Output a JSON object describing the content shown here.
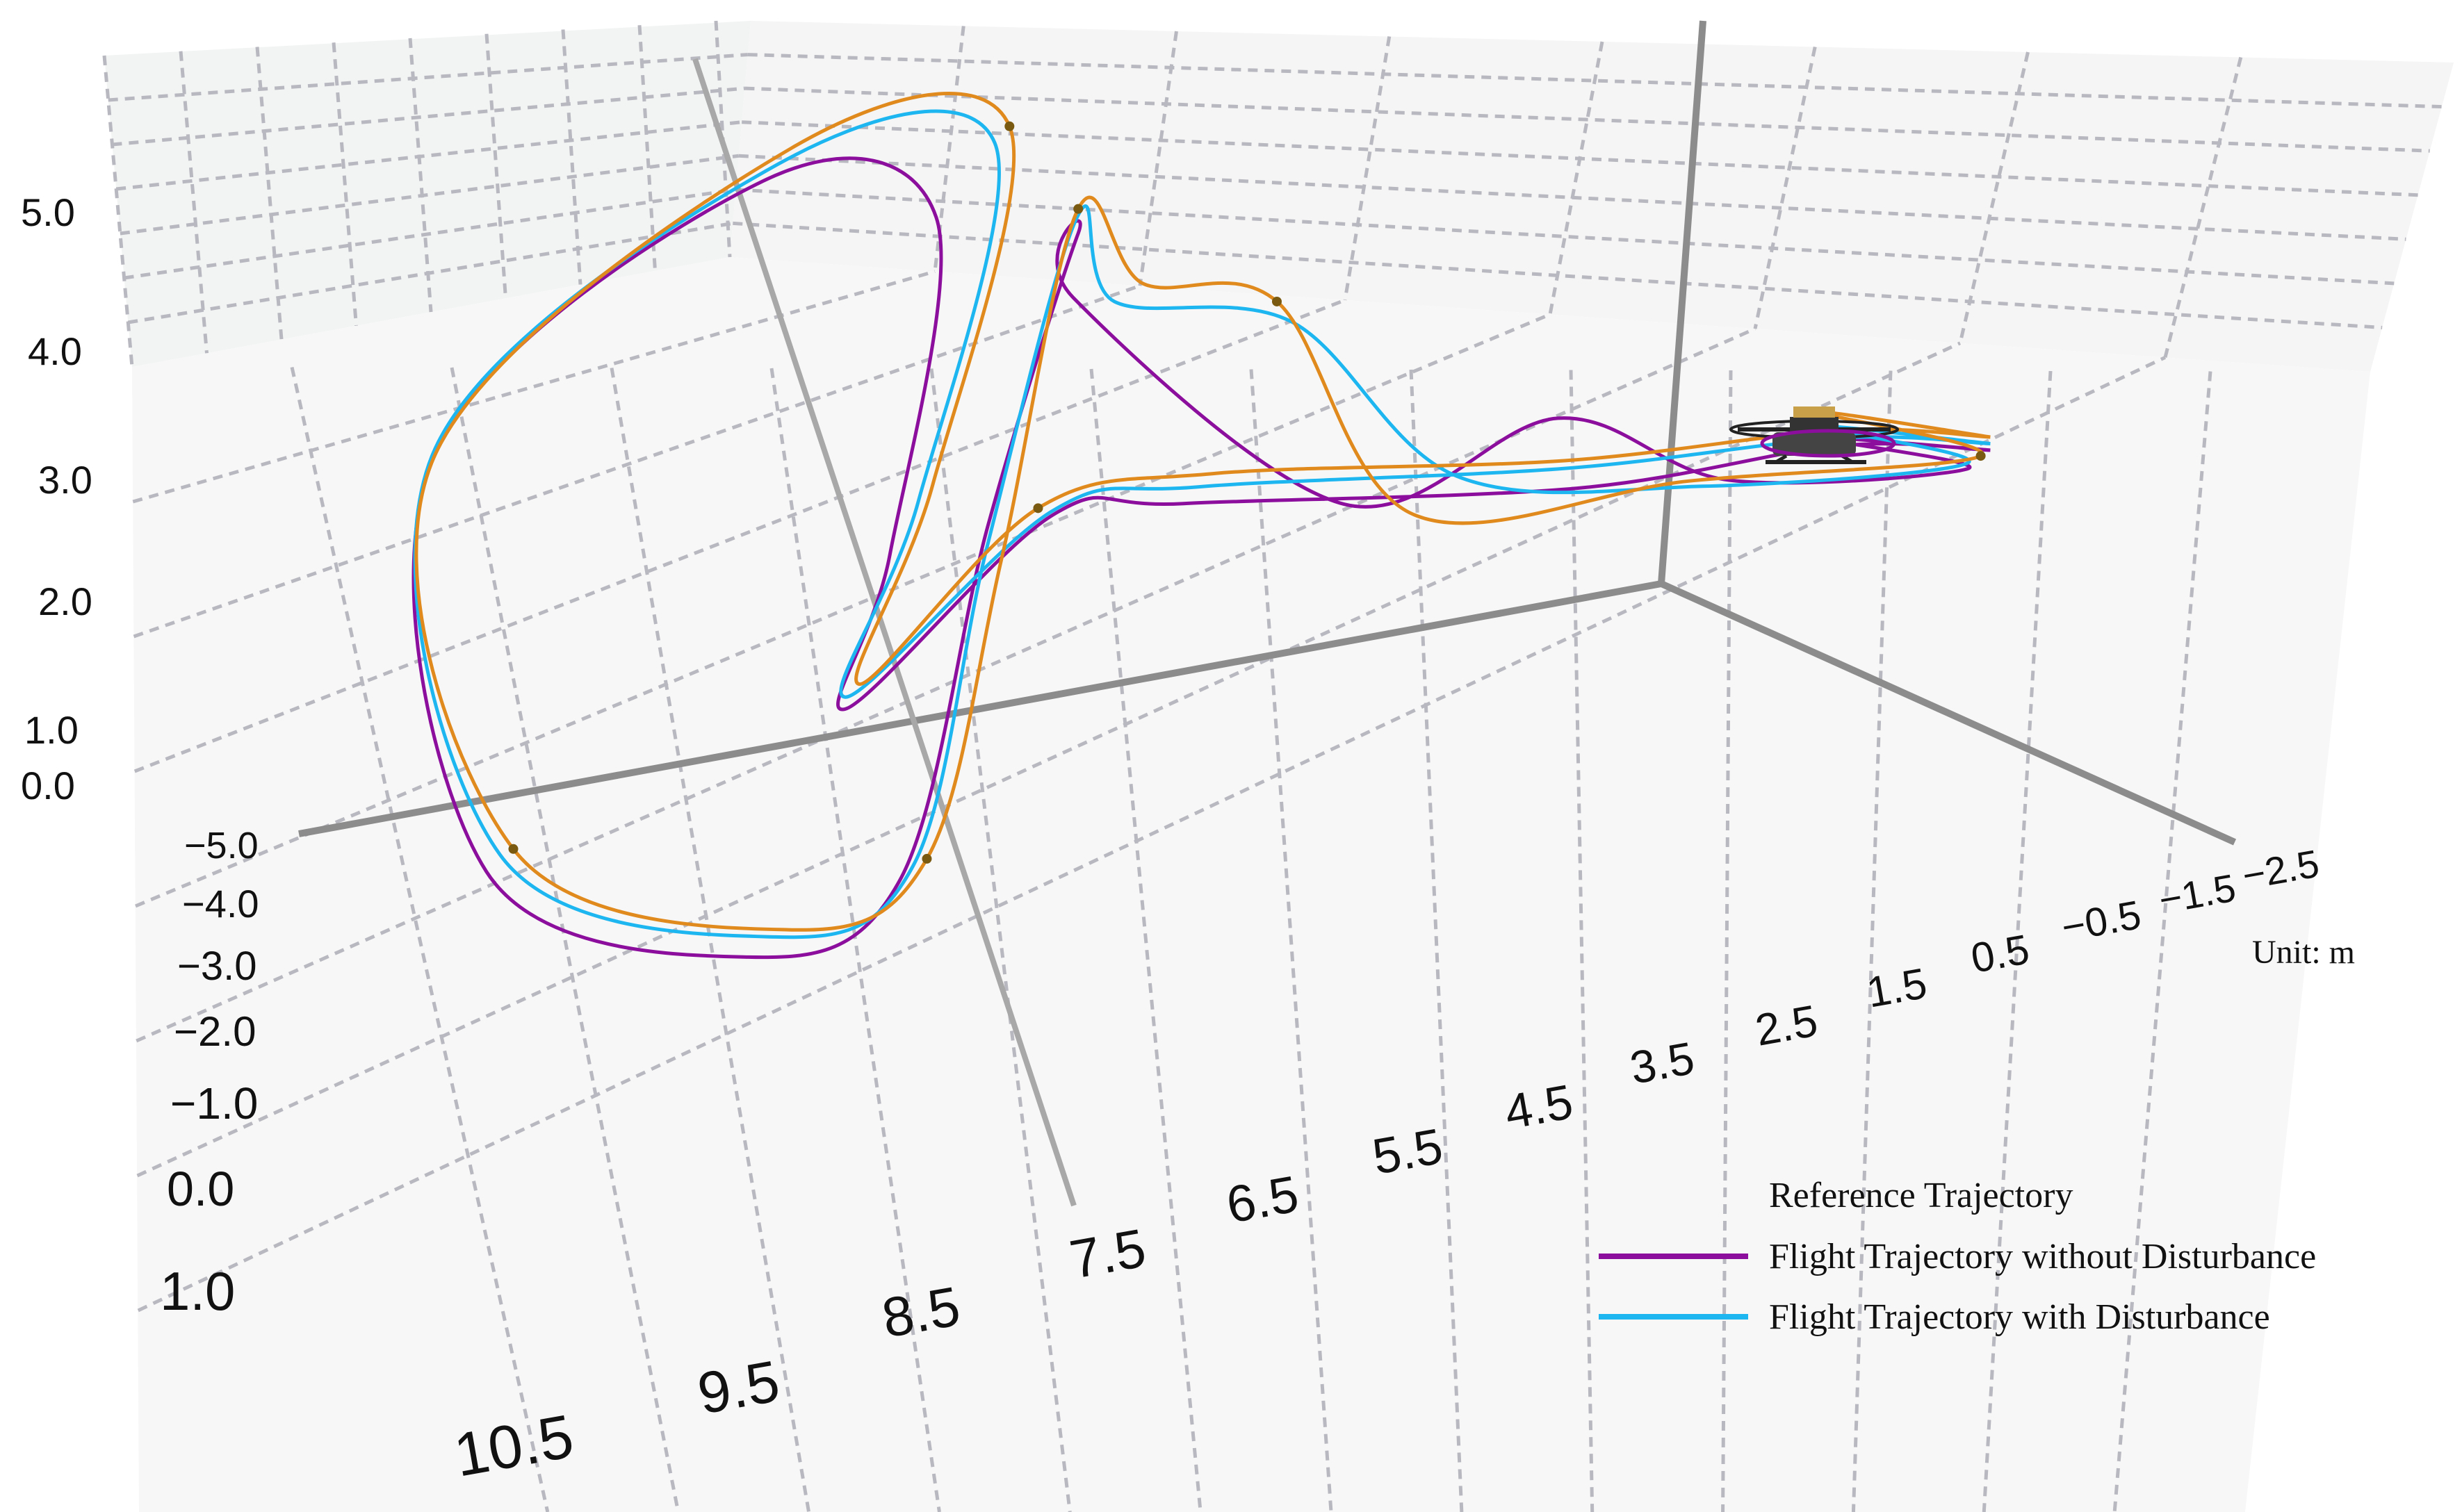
{
  "chart_data": {
    "type": "line",
    "projection": "3d",
    "unit": "Unit: m",
    "grid": true,
    "legend_position": "bottom-right",
    "axes": {
      "x": {
        "ticks": [
          "10.5",
          "9.5",
          "8.5",
          "7.5",
          "6.5",
          "5.5",
          "4.5",
          "3.5",
          "2.5",
          "1.5",
          "0.5",
          "−0.5",
          "−1.5",
          "−2.5"
        ],
        "range": [
          -2.5,
          10.5
        ]
      },
      "y": {
        "ticks": [
          "−5.0",
          "−4.0",
          "−3.0",
          "−2.0",
          "−1.0",
          "0.0",
          "1.0"
        ],
        "range": [
          -5.0,
          1.0
        ]
      },
      "z": {
        "ticks": [
          "0.0",
          "1.0",
          "2.0",
          "3.0",
          "4.0",
          "5.0"
        ],
        "range": [
          0.0,
          5.0
        ]
      }
    },
    "series": [
      {
        "name": "Reference Trajectory",
        "color": "#e08a1e",
        "gradient": [
          "#52c41a",
          "#d4380d"
        ],
        "points": [
          [
            -1.6,
            -1.6,
            3.2
          ],
          [
            -0.5,
            0.0,
            3.8
          ],
          [
            -1.8,
            1.0,
            3.5
          ],
          [
            0.5,
            -0.8,
            3.2
          ],
          [
            2.5,
            -0.9,
            3.1
          ],
          [
            3.5,
            -1.3,
            4.8
          ],
          [
            4.5,
            -2.5,
            4.7
          ],
          [
            5.0,
            -4.0,
            4.9
          ],
          [
            5.5,
            -2.2,
            2.6
          ],
          [
            6.0,
            -0.2,
            0.8
          ],
          [
            7.0,
            1.0,
            0.7
          ],
          [
            9.0,
            -0.8,
            0.9
          ],
          [
            9.5,
            -4.5,
            2.8
          ],
          [
            7.0,
            -5.0,
            5.2
          ],
          [
            5.5,
            -5.0,
            5.3
          ],
          [
            6.0,
            -3.0,
            3.0
          ],
          [
            6.5,
            -0.8,
            2.1
          ],
          [
            5.2,
            -0.6,
            3.5
          ],
          [
            4.0,
            -2.2,
            3.2
          ],
          [
            1.5,
            -2.3,
            3.1
          ],
          [
            -0.5,
            -1.8,
            3.3
          ],
          [
            -1.6,
            -1.6,
            3.2
          ]
        ]
      },
      {
        "name": "Flight Trajectory without Disturbance",
        "color": "#8b0f9c",
        "points": [
          [
            -1.6,
            -1.6,
            3.1
          ],
          [
            -0.6,
            0.1,
            3.6
          ],
          [
            -1.7,
            0.9,
            3.4
          ],
          [
            0.2,
            -0.7,
            3.2
          ],
          [
            1.5,
            -1.6,
            3.6
          ],
          [
            3.0,
            -1.0,
            3.2
          ],
          [
            5.0,
            -2.6,
            4.6
          ],
          [
            5.0,
            -4.0,
            4.7
          ],
          [
            5.6,
            -2.5,
            2.8
          ],
          [
            6.2,
            -0.3,
            0.6
          ],
          [
            7.3,
            1.0,
            0.5
          ],
          [
            9.2,
            -0.6,
            0.8
          ],
          [
            9.5,
            -4.3,
            2.9
          ],
          [
            7.2,
            -4.8,
            5.0
          ],
          [
            6.0,
            -4.6,
            4.7
          ],
          [
            6.3,
            -2.8,
            2.5
          ],
          [
            6.6,
            -0.8,
            1.9
          ],
          [
            5.1,
            -0.7,
            3.4
          ],
          [
            4.2,
            -2.1,
            3.0
          ],
          [
            1.4,
            -2.2,
            2.9
          ],
          [
            -0.5,
            -1.7,
            3.2
          ],
          [
            -1.6,
            -1.6,
            3.1
          ]
        ]
      },
      {
        "name": "Flight Trajectory with Disturbance",
        "color": "#1eb6f0",
        "points": [
          [
            -1.6,
            -1.6,
            3.15
          ],
          [
            -0.5,
            0.05,
            3.7
          ],
          [
            -1.7,
            0.95,
            3.45
          ],
          [
            0.4,
            -0.8,
            3.15
          ],
          [
            2.2,
            -1.2,
            3.3
          ],
          [
            3.4,
            -1.4,
            4.6
          ],
          [
            4.7,
            -2.4,
            4.6
          ],
          [
            5.0,
            -4.0,
            4.85
          ],
          [
            5.6,
            -2.3,
            2.7
          ],
          [
            6.1,
            -0.2,
            0.75
          ],
          [
            7.1,
            1.0,
            0.65
          ],
          [
            9.1,
            -0.7,
            0.9
          ],
          [
            9.5,
            -4.4,
            2.9
          ],
          [
            7.1,
            -4.9,
            5.1
          ],
          [
            5.6,
            -4.9,
            5.2
          ],
          [
            6.1,
            -2.9,
            2.9
          ],
          [
            6.6,
            -0.8,
            2.0
          ],
          [
            5.1,
            -0.65,
            3.45
          ],
          [
            4.1,
            -2.2,
            3.1
          ],
          [
            1.5,
            -2.25,
            3.05
          ],
          [
            -0.5,
            -1.75,
            3.25
          ],
          [
            -1.6,
            -1.6,
            3.15
          ]
        ]
      }
    ]
  }
}
